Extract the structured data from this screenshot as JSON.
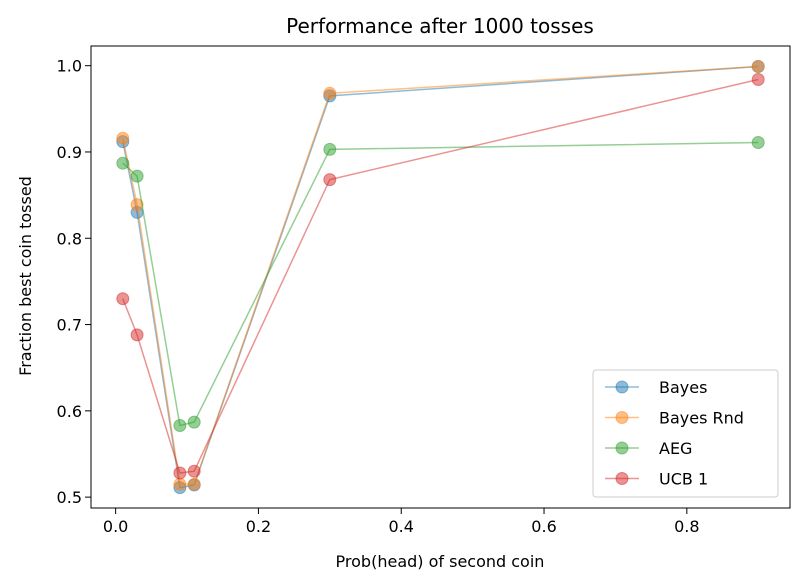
{
  "chart_data": {
    "type": "line",
    "title": "Performance after 1000 tosses",
    "xlabel": "Prob(head) of second coin",
    "ylabel": "Fraction best coin tossed",
    "xlim": [
      -0.0345,
      0.9445
    ],
    "ylim": [
      0.4874,
      1.0228
    ],
    "xticks": [
      0.0,
      0.2,
      0.4,
      0.6,
      0.8
    ],
    "xtick_labels": [
      "0.0",
      "0.2",
      "0.4",
      "0.6",
      "0.8"
    ],
    "yticks": [
      0.5,
      0.6,
      0.7,
      0.8,
      0.9,
      1.0
    ],
    "ytick_labels": [
      "0.5",
      "0.6",
      "0.7",
      "0.8",
      "0.9",
      "1.0"
    ],
    "grid": false,
    "legend_position": "lower-right",
    "x": [
      0.01,
      0.03,
      0.09,
      0.11,
      0.3,
      0.9
    ],
    "series": [
      {
        "name": "Bayes",
        "color": "#1f77b4",
        "values": [
          0.912,
          0.83,
          0.511,
          0.514,
          0.965,
          0.999
        ]
      },
      {
        "name": "Bayes Rnd",
        "color": "#ff7f0e",
        "values": [
          0.916,
          0.839,
          0.515,
          0.515,
          0.968,
          0.999
        ]
      },
      {
        "name": "AEG",
        "color": "#2ca02c",
        "values": [
          0.887,
          0.872,
          0.583,
          0.587,
          0.903,
          0.911
        ]
      },
      {
        "name": "UCB 1",
        "color": "#d62728",
        "values": [
          0.73,
          0.688,
          0.528,
          0.53,
          0.868,
          0.984
        ]
      }
    ]
  }
}
